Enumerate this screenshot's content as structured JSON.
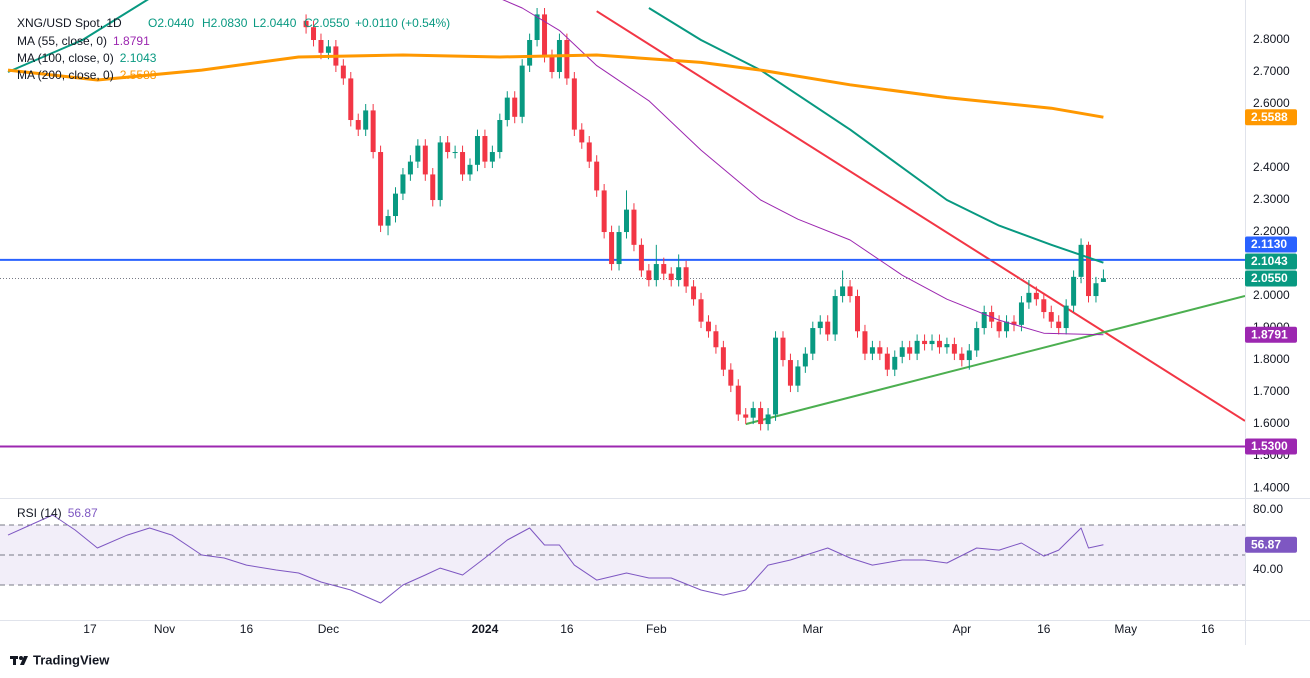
{
  "header": {
    "symbol": "XNG/USD Spot, 1D",
    "open": "O2.0440",
    "high": "H2.0830",
    "low": "L2.0440",
    "close": "C2.0550",
    "change": "+0.0110 (+0.54%)"
  },
  "footer": {
    "brand": "TradingView"
  },
  "chart_data": [
    {
      "type": "candlestick",
      "up_color": "#089981",
      "down_color": "#f23645",
      "xlim": [
        0,
        166
      ],
      "ylim": [
        1.369,
        2.925
      ],
      "x": [
        40,
        41,
        42,
        43,
        44,
        45,
        46,
        47,
        48,
        49,
        50,
        51,
        52,
        53,
        54,
        55,
        56,
        57,
        58,
        59,
        60,
        61,
        62,
        63,
        64,
        65,
        66,
        67,
        68,
        69,
        70,
        71,
        72,
        73,
        74,
        75,
        76,
        77,
        78,
        79,
        80,
        81,
        82,
        83,
        84,
        85,
        86,
        87,
        88,
        89,
        90,
        91,
        92,
        93,
        94,
        95,
        96,
        97,
        98,
        99,
        100,
        101,
        102,
        103,
        104,
        105,
        106,
        107,
        108,
        109,
        110,
        111,
        112,
        113,
        114,
        115,
        116,
        117,
        118,
        119,
        120,
        121,
        122,
        123,
        124,
        125,
        126,
        127,
        128,
        129,
        130,
        131,
        132,
        133,
        134,
        135,
        136,
        137,
        138,
        139,
        140,
        141,
        142,
        143,
        144,
        145,
        146,
        147
      ],
      "open": [
        2.86,
        2.84,
        2.8,
        2.76,
        2.78,
        2.72,
        2.68,
        2.55,
        2.52,
        2.58,
        2.45,
        2.22,
        2.25,
        2.32,
        2.38,
        2.42,
        2.47,
        2.38,
        2.3,
        2.48,
        2.45,
        2.45,
        2.38,
        2.41,
        2.5,
        2.42,
        2.45,
        2.55,
        2.62,
        2.56,
        2.72,
        2.8,
        2.88,
        2.75,
        2.7,
        2.8,
        2.68,
        2.52,
        2.48,
        2.42,
        2.33,
        2.2,
        2.1,
        2.2,
        2.27,
        2.16,
        2.08,
        2.05,
        2.1,
        2.07,
        2.05,
        2.09,
        2.03,
        1.99,
        1.92,
        1.89,
        1.84,
        1.77,
        1.72,
        1.63,
        1.62,
        1.65,
        1.6,
        1.63,
        1.87,
        1.8,
        1.72,
        1.78,
        1.82,
        1.9,
        1.92,
        1.88,
        2.0,
        2.03,
        2.0,
        1.89,
        1.82,
        1.84,
        1.82,
        1.77,
        1.81,
        1.84,
        1.82,
        1.86,
        1.85,
        1.86,
        1.84,
        1.85,
        1.82,
        1.8,
        1.83,
        1.9,
        1.95,
        1.92,
        1.89,
        1.92,
        1.91,
        1.98,
        2.01,
        1.99,
        1.95,
        1.92,
        1.9,
        1.97,
        2.06,
        2.16,
        2.0,
        2.044
      ],
      "high": [
        2.88,
        2.86,
        2.82,
        2.8,
        2.8,
        2.74,
        2.7,
        2.57,
        2.6,
        2.6,
        2.47,
        2.27,
        2.34,
        2.4,
        2.44,
        2.49,
        2.49,
        2.4,
        2.5,
        2.5,
        2.47,
        2.47,
        2.43,
        2.52,
        2.52,
        2.47,
        2.57,
        2.64,
        2.64,
        2.74,
        2.82,
        2.9,
        2.9,
        2.77,
        2.82,
        2.82,
        2.7,
        2.54,
        2.5,
        2.44,
        2.35,
        2.22,
        2.22,
        2.33,
        2.29,
        2.18,
        2.1,
        2.16,
        2.12,
        2.09,
        2.13,
        2.11,
        2.05,
        2.01,
        1.94,
        1.91,
        1.86,
        1.79,
        1.74,
        1.65,
        1.67,
        1.67,
        1.65,
        1.89,
        1.89,
        1.82,
        1.8,
        1.84,
        1.92,
        1.94,
        1.94,
        2.02,
        2.08,
        2.05,
        2.02,
        1.91,
        1.86,
        1.86,
        1.84,
        1.83,
        1.86,
        1.86,
        1.88,
        1.88,
        1.88,
        1.88,
        1.87,
        1.87,
        1.84,
        1.85,
        1.92,
        1.97,
        1.97,
        1.94,
        1.94,
        1.94,
        2.0,
        2.05,
        2.03,
        2.01,
        1.97,
        1.94,
        1.99,
        2.08,
        2.18,
        2.17,
        2.06,
        2.083
      ],
      "low": [
        2.82,
        2.78,
        2.74,
        2.74,
        2.7,
        2.66,
        2.53,
        2.5,
        2.5,
        2.43,
        2.2,
        2.19,
        2.23,
        2.3,
        2.36,
        2.4,
        2.36,
        2.28,
        2.28,
        2.43,
        2.43,
        2.36,
        2.36,
        2.39,
        2.4,
        2.4,
        2.43,
        2.53,
        2.54,
        2.54,
        2.7,
        2.78,
        2.73,
        2.68,
        2.68,
        2.66,
        2.5,
        2.46,
        2.4,
        2.31,
        2.18,
        2.08,
        2.08,
        2.18,
        2.14,
        2.06,
        2.03,
        2.03,
        2.05,
        2.03,
        2.03,
        2.01,
        1.97,
        1.9,
        1.87,
        1.82,
        1.75,
        1.7,
        1.61,
        1.6,
        1.6,
        1.58,
        1.58,
        1.61,
        1.78,
        1.7,
        1.7,
        1.76,
        1.8,
        1.88,
        1.86,
        1.86,
        1.98,
        1.98,
        1.87,
        1.8,
        1.8,
        1.8,
        1.75,
        1.75,
        1.79,
        1.8,
        1.8,
        1.83,
        1.83,
        1.82,
        1.82,
        1.8,
        1.78,
        1.77,
        1.81,
        1.88,
        1.9,
        1.87,
        1.87,
        1.89,
        1.89,
        1.96,
        1.97,
        1.93,
        1.9,
        1.88,
        1.88,
        1.95,
        2.04,
        1.98,
        1.98,
        2.044
      ],
      "close": [
        2.84,
        2.8,
        2.76,
        2.78,
        2.72,
        2.68,
        2.55,
        2.52,
        2.58,
        2.45,
        2.22,
        2.25,
        2.32,
        2.38,
        2.42,
        2.47,
        2.38,
        2.3,
        2.48,
        2.45,
        2.45,
        2.38,
        2.41,
        2.5,
        2.42,
        2.45,
        2.55,
        2.62,
        2.56,
        2.72,
        2.8,
        2.88,
        2.75,
        2.7,
        2.8,
        2.68,
        2.52,
        2.48,
        2.42,
        2.33,
        2.2,
        2.1,
        2.2,
        2.27,
        2.16,
        2.08,
        2.05,
        2.1,
        2.07,
        2.05,
        2.09,
        2.03,
        1.99,
        1.92,
        1.89,
        1.84,
        1.77,
        1.72,
        1.63,
        1.62,
        1.65,
        1.6,
        1.63,
        1.87,
        1.8,
        1.72,
        1.78,
        1.82,
        1.9,
        1.92,
        1.88,
        2.0,
        2.03,
        2.0,
        1.89,
        1.82,
        1.84,
        1.82,
        1.77,
        1.81,
        1.84,
        1.82,
        1.86,
        1.85,
        1.86,
        1.84,
        1.85,
        1.82,
        1.8,
        1.83,
        1.9,
        1.95,
        1.92,
        1.89,
        1.92,
        1.91,
        1.98,
        2.01,
        1.99,
        1.95,
        1.92,
        1.9,
        1.97,
        2.06,
        2.16,
        2.0,
        2.04,
        2.055
      ],
      "yticks": [
        {
          "value": 2.8,
          "label": "2.8000"
        },
        {
          "value": 2.7,
          "label": "2.7000"
        },
        {
          "value": 2.6,
          "label": "2.6000"
        },
        {
          "value": 2.4,
          "label": "2.4000"
        },
        {
          "value": 2.3,
          "label": "2.3000"
        },
        {
          "value": 2.2,
          "label": "2.2000"
        },
        {
          "value": 2.0,
          "label": "2.0000"
        },
        {
          "value": 1.9,
          "label": "1.9000"
        },
        {
          "value": 1.8,
          "label": "1.8000"
        },
        {
          "value": 1.7,
          "label": "1.7000"
        },
        {
          "value": 1.6,
          "label": "1.6000"
        },
        {
          "value": 1.5,
          "label": "1.5000"
        },
        {
          "value": 1.4,
          "label": "1.4000"
        }
      ],
      "series": [
        {
          "name": "MA (55, close, 0)",
          "color": "#9c27b0",
          "width": 1,
          "value_label": "1.8791",
          "x": [
            66,
            69,
            74,
            79,
            86,
            93,
            101,
            106,
            113,
            120,
            126,
            133,
            139,
            147
          ],
          "values": [
            2.93,
            2.9,
            2.83,
            2.72,
            2.61,
            2.456,
            2.3,
            2.24,
            2.175,
            2.065,
            1.99,
            1.925,
            1.884,
            1.8791
          ]
        },
        {
          "name": "MA (100, close, 0)",
          "color": "#089981",
          "width": 2,
          "value_label": "2.1043",
          "x": [
            0,
            10,
            19,
            50,
            86,
            93,
            101,
            113,
            126,
            133,
            140,
            147
          ],
          "values": [
            2.7,
            2.8,
            2.93,
            null,
            2.9,
            2.8,
            2.706,
            2.52,
            2.3,
            2.22,
            2.16,
            2.1043
          ]
        },
        {
          "name": "MA (200, close, 0)",
          "color": "#ff9800",
          "width": 3,
          "value_label": "2.5588",
          "x": [
            0,
            12,
            26,
            39,
            53,
            66,
            79,
            93,
            101,
            113,
            126,
            140,
            147
          ],
          "values": [
            2.706,
            2.675,
            2.706,
            2.747,
            2.753,
            2.747,
            2.753,
            2.73,
            2.706,
            2.66,
            2.62,
            2.587,
            2.5588
          ]
        }
      ],
      "trend_lines": [
        {
          "color": "#f23645",
          "x": [
            79,
            166
          ],
          "values": [
            2.89,
            1.61
          ]
        },
        {
          "color": "#4caf50",
          "x": [
            99,
            166
          ],
          "values": [
            1.6,
            2.0
          ]
        }
      ],
      "levels": [
        {
          "value": 2.113,
          "label": "2.1130",
          "color": "#2962ff"
        },
        {
          "value": 1.53,
          "label": "1.5300",
          "color": "#9c27b0"
        }
      ],
      "last_price": {
        "value": 2.055,
        "label": "2.0550",
        "color": "#089981"
      }
    },
    {
      "type": "line",
      "title": "RSI (14)",
      "color": "#7e57c2",
      "value_label": "56.87",
      "xlim": [
        0,
        166
      ],
      "ylim": [
        6.67,
        86.67
      ],
      "yticks": [
        {
          "value": 80,
          "label": "80.00"
        },
        {
          "value": 40,
          "label": "40.00"
        }
      ],
      "levels": [
        70,
        50,
        30
      ],
      "x": [
        0,
        3,
        6,
        9,
        12,
        16,
        19,
        22,
        26,
        29,
        32,
        36,
        39,
        42,
        46,
        50,
        53,
        56,
        58,
        61,
        64,
        67,
        70,
        72,
        74,
        76,
        79,
        83,
        86,
        89,
        93,
        96,
        99,
        102,
        105,
        110,
        113,
        116,
        120,
        123,
        126,
        130,
        133,
        136,
        139,
        141,
        144,
        145,
        147
      ],
      "values": [
        63.3,
        70,
        76.7,
        66.7,
        54.7,
        63.3,
        68,
        63.3,
        50,
        48,
        43.3,
        40,
        38,
        32,
        26.7,
        18,
        30,
        36.7,
        41.3,
        36.7,
        48,
        60,
        68,
        56.7,
        56.7,
        43.3,
        33.3,
        38,
        34.7,
        34.7,
        26.7,
        23.3,
        26.7,
        43.3,
        46.7,
        54.7,
        48,
        43.3,
        46.7,
        46.7,
        44.7,
        54.7,
        53.3,
        58,
        49.3,
        53.3,
        68,
        54.7,
        56.87
      ],
      "xticks": [
        {
          "value": 11,
          "label": "17"
        },
        {
          "value": 21,
          "label": "Nov"
        },
        {
          "value": 32,
          "label": "16"
        },
        {
          "value": 43,
          "label": "Dec"
        },
        {
          "value": 64,
          "label": "2024",
          "bold": true
        },
        {
          "value": 75,
          "label": "16"
        },
        {
          "value": 87,
          "label": "Feb"
        },
        {
          "value": 108,
          "label": "Mar"
        },
        {
          "value": 128,
          "label": "Apr"
        },
        {
          "value": 139,
          "label": "16"
        },
        {
          "value": 150,
          "label": "May"
        },
        {
          "value": 161,
          "label": "16"
        }
      ]
    }
  ]
}
